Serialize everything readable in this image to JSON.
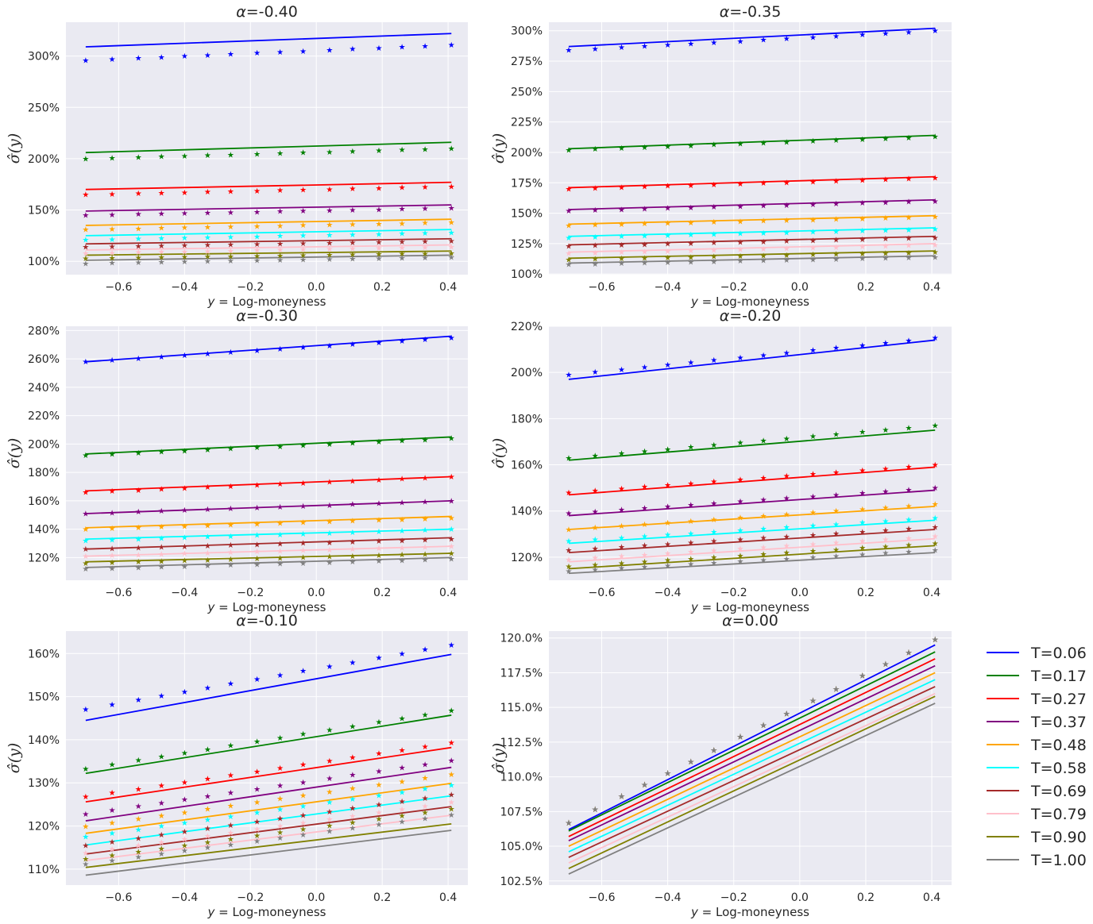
{
  "chart_data": {
    "type": "line",
    "xlabel": "$y$ = Log-moneyness",
    "xlabel_parts": {
      "var": "y",
      "rest": " = Log-moneyness"
    },
    "ylabel": "$\\hat{\\sigma}(y)$",
    "xlim": [
      -0.76,
      0.46
    ],
    "x_ticks": [
      -0.6,
      -0.4,
      -0.2,
      0.0,
      0.2,
      0.4
    ],
    "x_tick_labels": [
      "−0.6",
      "−0.4",
      "−0.2",
      "0.0",
      "0.2",
      "0.4"
    ],
    "x_points": [
      -0.7,
      -0.62,
      -0.54,
      -0.47,
      -0.4,
      -0.33,
      -0.26,
      -0.18,
      -0.11,
      -0.04,
      0.04,
      0.11,
      0.19,
      0.26,
      0.33,
      0.41
    ],
    "grid": true,
    "legend_position": "outside-right",
    "legend": [
      {
        "name": "T=0.06",
        "color": "#0000ff"
      },
      {
        "name": "T=0.17",
        "color": "#008000"
      },
      {
        "name": "T=0.27",
        "color": "#ff0000"
      },
      {
        "name": "T=0.37",
        "color": "#800080"
      },
      {
        "name": "T=0.48",
        "color": "#ffa500"
      },
      {
        "name": "T=0.58",
        "color": "#00ffff"
      },
      {
        "name": "T=0.69",
        "color": "#a52a2a"
      },
      {
        "name": "T=0.79",
        "color": "#ffc0cb"
      },
      {
        "name": "T=0.90",
        "color": "#808000"
      },
      {
        "name": "T=1.00",
        "color": "#808080"
      }
    ],
    "subplots": [
      {
        "title": "α=-0.40",
        "title_parts": {
          "alpha": "α",
          "value": "=-0.40"
        },
        "ylim": [
          0.87,
          3.33
        ],
        "y_ticks": [
          1.0,
          1.5,
          2.0,
          2.5,
          3.0
        ],
        "y_tick_labels": [
          "100%",
          "150%",
          "200%",
          "250%",
          "300%"
        ],
        "lines": [
          [
            3.09,
            3.22
          ],
          [
            2.06,
            2.16
          ],
          [
            1.7,
            1.77
          ],
          [
            1.49,
            1.55
          ],
          [
            1.35,
            1.41
          ],
          [
            1.25,
            1.31
          ],
          [
            1.17,
            1.22
          ],
          [
            1.11,
            1.16
          ],
          [
            1.06,
            1.1
          ],
          [
            1.01,
            1.06
          ]
        ],
        "stars": [
          [
            2.96,
            3.11
          ],
          [
            2.0,
            2.1
          ],
          [
            1.65,
            1.73
          ],
          [
            1.45,
            1.52
          ],
          [
            1.31,
            1.38
          ],
          [
            1.21,
            1.28
          ],
          [
            1.14,
            1.2
          ],
          [
            1.08,
            1.14
          ],
          [
            1.03,
            1.08
          ],
          [
            0.98,
            1.04
          ]
        ]
      },
      {
        "title": "α=-0.35",
        "title_parts": {
          "alpha": "α",
          "value": "=-0.35"
        },
        "ylim": [
          0.995,
          3.07
        ],
        "y_ticks": [
          1.0,
          1.25,
          1.5,
          1.75,
          2.0,
          2.25,
          2.5,
          2.75,
          3.0
        ],
        "y_tick_labels": [
          "100%",
          "125%",
          "150%",
          "175%",
          "200%",
          "225%",
          "250%",
          "275%",
          "300%"
        ],
        "lines": [
          [
            2.87,
            3.02
          ],
          [
            2.03,
            2.14
          ],
          [
            1.71,
            1.8
          ],
          [
            1.53,
            1.61
          ],
          [
            1.41,
            1.48
          ],
          [
            1.31,
            1.38
          ],
          [
            1.24,
            1.31
          ],
          [
            1.18,
            1.25
          ],
          [
            1.13,
            1.19
          ],
          [
            1.09,
            1.15
          ]
        ],
        "stars": [
          [
            2.84,
            3.0
          ],
          [
            2.02,
            2.13
          ],
          [
            1.7,
            1.79
          ],
          [
            1.52,
            1.6
          ],
          [
            1.4,
            1.47
          ],
          [
            1.3,
            1.37
          ],
          [
            1.23,
            1.3
          ],
          [
            1.17,
            1.24
          ],
          [
            1.12,
            1.18
          ],
          [
            1.08,
            1.14
          ]
        ]
      },
      {
        "title": "α=-0.30",
        "title_parts": {
          "alpha": "α",
          "value": "=-0.30"
        },
        "ylim": [
          1.04,
          2.83
        ],
        "y_ticks": [
          1.2,
          1.4,
          1.6,
          1.8,
          2.0,
          2.2,
          2.4,
          2.6,
          2.8
        ],
        "y_tick_labels": [
          "120%",
          "140%",
          "160%",
          "180%",
          "200%",
          "220%",
          "240%",
          "260%",
          "280%"
        ],
        "lines": [
          [
            2.58,
            2.76
          ],
          [
            1.93,
            2.05
          ],
          [
            1.67,
            1.77
          ],
          [
            1.51,
            1.6
          ],
          [
            1.41,
            1.49
          ],
          [
            1.33,
            1.4
          ],
          [
            1.26,
            1.34
          ],
          [
            1.21,
            1.28
          ],
          [
            1.17,
            1.23
          ],
          [
            1.13,
            1.2
          ]
        ],
        "stars": [
          [
            2.58,
            2.75
          ],
          [
            1.92,
            2.04
          ],
          [
            1.66,
            1.77
          ],
          [
            1.51,
            1.6
          ],
          [
            1.4,
            1.48
          ],
          [
            1.32,
            1.4
          ],
          [
            1.26,
            1.33
          ],
          [
            1.21,
            1.28
          ],
          [
            1.16,
            1.23
          ],
          [
            1.12,
            1.19
          ]
        ]
      },
      {
        "title": "α=-0.20",
        "title_parts": {
          "alpha": "α",
          "value": "=-0.20"
        },
        "ylim": [
          1.1,
          2.2
        ],
        "y_ticks": [
          1.2,
          1.4,
          1.6,
          1.8,
          2.0,
          2.2
        ],
        "y_tick_labels": [
          "120%",
          "140%",
          "160%",
          "180%",
          "200%",
          "220%"
        ],
        "lines": [
          [
            1.97,
            2.14
          ],
          [
            1.62,
            1.75
          ],
          [
            1.47,
            1.59
          ],
          [
            1.38,
            1.49
          ],
          [
            1.32,
            1.42
          ],
          [
            1.26,
            1.36
          ],
          [
            1.22,
            1.32
          ],
          [
            1.18,
            1.28
          ],
          [
            1.15,
            1.25
          ],
          [
            1.13,
            1.22
          ]
        ],
        "stars": [
          [
            1.99,
            2.15
          ],
          [
            1.63,
            1.77
          ],
          [
            1.48,
            1.6
          ],
          [
            1.39,
            1.5
          ],
          [
            1.32,
            1.43
          ],
          [
            1.27,
            1.37
          ],
          [
            1.23,
            1.33
          ],
          [
            1.19,
            1.29
          ],
          [
            1.16,
            1.26
          ],
          [
            1.14,
            1.23
          ]
        ]
      },
      {
        "title": "α=-0.10",
        "title_parts": {
          "alpha": "α",
          "value": "=-0.10"
        },
        "ylim": [
          1.063,
          1.652
        ],
        "y_ticks": [
          1.1,
          1.2,
          1.3,
          1.4,
          1.5,
          1.6
        ],
        "y_tick_labels": [
          "110%",
          "120%",
          "130%",
          "140%",
          "150%",
          "160%"
        ],
        "lines": [
          [
            1.445,
            1.598
          ],
          [
            1.322,
            1.457
          ],
          [
            1.256,
            1.382
          ],
          [
            1.212,
            1.336
          ],
          [
            1.183,
            1.299
          ],
          [
            1.156,
            1.27
          ],
          [
            1.135,
            1.245
          ],
          [
            1.12,
            1.225
          ],
          [
            1.104,
            1.205
          ],
          [
            1.086,
            1.19
          ]
        ],
        "stars": [
          [
            1.471,
            1.62
          ],
          [
            1.333,
            1.468
          ],
          [
            1.268,
            1.393
          ],
          [
            1.228,
            1.352
          ],
          [
            1.199,
            1.32
          ],
          [
            1.175,
            1.295
          ],
          [
            1.155,
            1.273
          ],
          [
            1.138,
            1.255
          ],
          [
            1.124,
            1.24
          ],
          [
            1.112,
            1.226
          ]
        ]
      },
      {
        "title": "α=0.00",
        "title_parts": {
          "alpha": "α",
          "value": "=0.00"
        },
        "ylim": [
          1.022,
          1.205
        ],
        "y_ticks": [
          1.025,
          1.05,
          1.075,
          1.1,
          1.125,
          1.15,
          1.175,
          1.2
        ],
        "y_tick_labels": [
          "102.5%",
          "105.0%",
          "107.5%",
          "110.0%",
          "112.5%",
          "115.0%",
          "117.5%",
          "120.0%"
        ],
        "lines": [
          [
            1.062,
            1.195
          ],
          [
            1.061,
            1.19
          ],
          [
            1.057,
            1.185
          ],
          [
            1.054,
            1.18
          ],
          [
            1.05,
            1.175
          ],
          [
            1.046,
            1.17
          ],
          [
            1.042,
            1.165
          ],
          [
            1.038,
            1.16
          ],
          [
            1.034,
            1.158
          ],
          [
            1.03,
            1.153
          ]
        ],
        "stars": [
          [
            1.067,
            1.199
          ],
          [
            1.067,
            1.199
          ],
          [
            1.067,
            1.199
          ],
          [
            1.067,
            1.199
          ],
          [
            1.067,
            1.199
          ],
          [
            1.067,
            1.199
          ],
          [
            1.067,
            1.199
          ],
          [
            1.067,
            1.199
          ],
          [
            1.067,
            1.199
          ],
          [
            1.067,
            1.199
          ]
        ]
      }
    ]
  }
}
